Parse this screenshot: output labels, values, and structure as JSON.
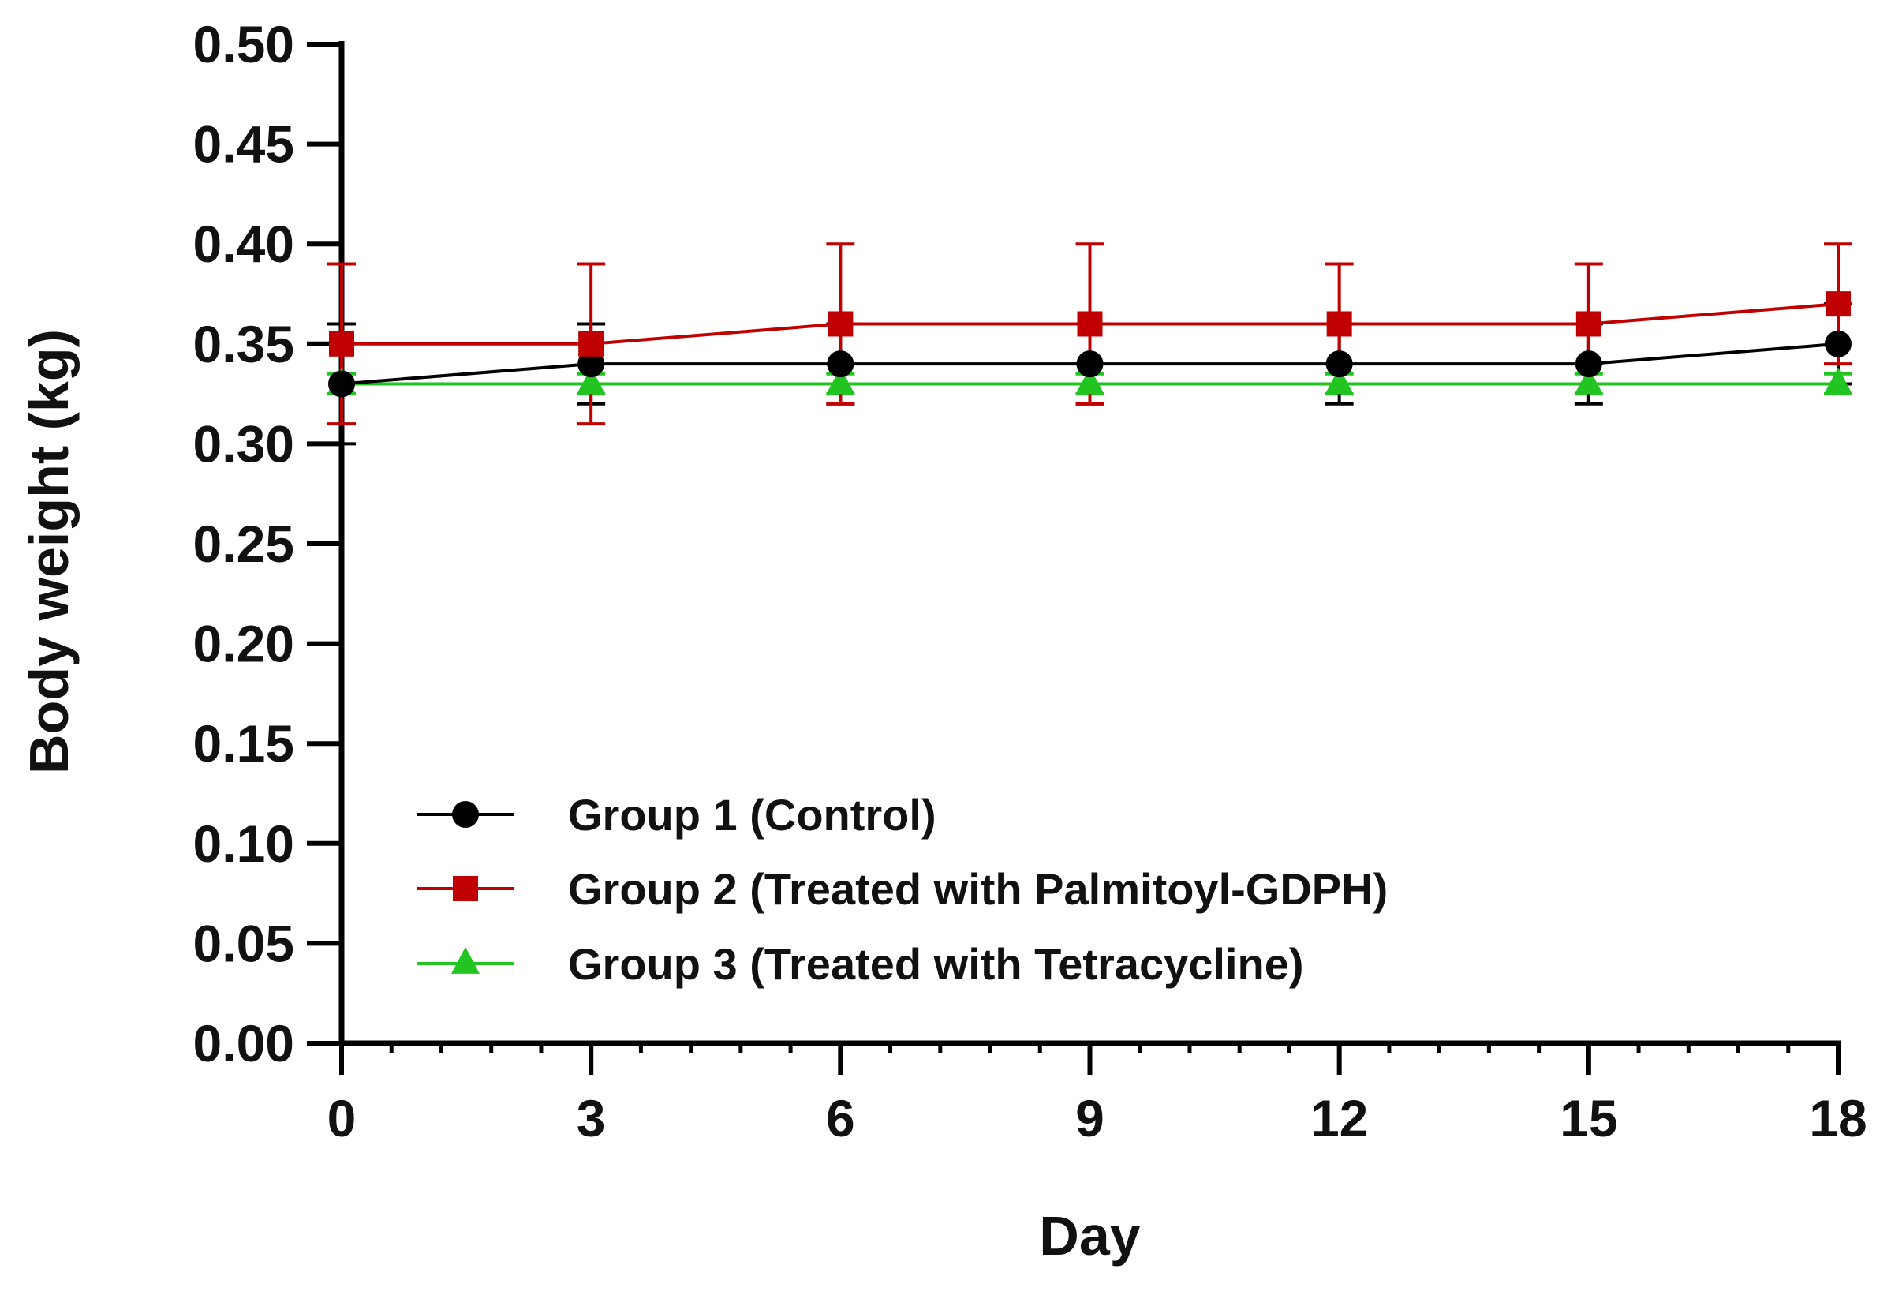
{
  "chart_data": {
    "type": "line",
    "title": "",
    "xlabel": "Day",
    "ylabel": "Body weight (kg)",
    "x": [
      0,
      3,
      6,
      9,
      12,
      15,
      18
    ],
    "xlim": [
      0,
      18
    ],
    "ylim": [
      0,
      0.5
    ],
    "x_ticks": [
      0,
      3,
      6,
      9,
      12,
      15,
      18
    ],
    "x_tick_labels": [
      "0",
      "3",
      "6",
      "9",
      "12",
      "15",
      "18"
    ],
    "x_minor_step": 0.6,
    "y_ticks": [
      0,
      0.05,
      0.1,
      0.15,
      0.2,
      0.25,
      0.3,
      0.35,
      0.4,
      0.45,
      0.5
    ],
    "y_tick_labels": [
      "0.00",
      "0.05",
      "0.10",
      "0.15",
      "0.20",
      "0.25",
      "0.30",
      "0.35",
      "0.40",
      "0.45",
      "0.50"
    ],
    "grid": false,
    "legend_position": "bottom-left",
    "series": [
      {
        "name": "Group 1 (Control)",
        "marker": "circle",
        "color": "#000000",
        "values": [
          0.33,
          0.34,
          0.34,
          0.34,
          0.34,
          0.34,
          0.35
        ],
        "error": [
          0.03,
          0.02,
          0.02,
          0.02,
          0.02,
          0.02,
          0.02
        ]
      },
      {
        "name": "Group 2 (Treated with Palmitoyl-GDPH)",
        "marker": "square",
        "color": "#c00000",
        "values": [
          0.35,
          0.35,
          0.36,
          0.36,
          0.36,
          0.36,
          0.37
        ],
        "error": [
          0.04,
          0.04,
          0.04,
          0.04,
          0.03,
          0.03,
          0.03
        ]
      },
      {
        "name": "Group 3 (Treated with Tetracycline)",
        "marker": "triangle",
        "color": "#22c422",
        "values": [
          0.33,
          0.33,
          0.33,
          0.33,
          0.33,
          0.33,
          0.33
        ],
        "error": [
          0.005,
          0.005,
          0.005,
          0.005,
          0.005,
          0.005,
          0.005
        ]
      }
    ]
  }
}
